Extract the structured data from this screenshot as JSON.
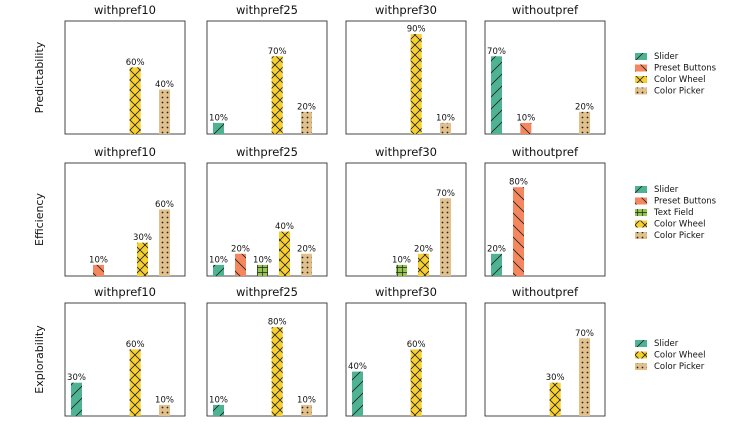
{
  "colors": {
    "Slider": "#4db393",
    "Preset Buttons": "#f58760",
    "Text Field": "#94c553",
    "Color Wheel": "#f7cf2e",
    "Color Picker": "#e1c08c"
  },
  "patterns": {
    "Slider": "diag-forward",
    "Preset Buttons": "diag-back",
    "Text Field": "plus-grid",
    "Color Wheel": "cross-hatch",
    "Color Picker": "dots"
  },
  "chart_data": [
    {
      "type": "bar",
      "row": "Predictability",
      "categories": [
        "Slider",
        "Preset Buttons",
        "Color Wheel",
        "Color Picker"
      ],
      "legend": [
        "Slider",
        "Preset Buttons",
        "Color Wheel",
        "Color Picker"
      ],
      "ylim": [
        0,
        100
      ],
      "panels": [
        {
          "title": "withpref10",
          "values": [
            null,
            null,
            60,
            40
          ],
          "labels": [
            "",
            "",
            "60%",
            "40%"
          ]
        },
        {
          "title": "withpref25",
          "values": [
            10,
            null,
            70,
            20
          ],
          "labels": [
            "10%",
            "",
            "70%",
            "20%"
          ]
        },
        {
          "title": "withpref30",
          "values": [
            null,
            null,
            90,
            10
          ],
          "labels": [
            "",
            "",
            "90%",
            "10%"
          ]
        },
        {
          "title": "withoutpref",
          "values": [
            70,
            10,
            null,
            20
          ],
          "labels": [
            "70%",
            "10%",
            "",
            "20%"
          ]
        }
      ]
    },
    {
      "type": "bar",
      "row": "Efficiency",
      "categories": [
        "Slider",
        "Preset Buttons",
        "Text Field",
        "Color Wheel",
        "Color Picker"
      ],
      "legend": [
        "Slider",
        "Preset Buttons",
        "Text Field",
        "Color Wheel",
        "Color Picker"
      ],
      "ylim": [
        0,
        100
      ],
      "panels": [
        {
          "title": "withpref10",
          "values": [
            null,
            10,
            null,
            30,
            60
          ],
          "labels": [
            "",
            "10%",
            "",
            "30%",
            "60%"
          ]
        },
        {
          "title": "withpref25",
          "values": [
            10,
            20,
            10,
            40,
            20
          ],
          "labels": [
            "10%",
            "20%",
            "10%",
            "40%",
            "20%"
          ]
        },
        {
          "title": "withpref30",
          "values": [
            null,
            null,
            10,
            20,
            70
          ],
          "labels": [
            "",
            "",
            "10%",
            "20%",
            "70%"
          ]
        },
        {
          "title": "withoutpref",
          "values": [
            20,
            80,
            null,
            null,
            null
          ],
          "labels": [
            "20%",
            "80%",
            "",
            "",
            ""
          ]
        }
      ]
    },
    {
      "type": "bar",
      "row": "Explorability",
      "categories": [
        "Slider",
        "Preset Buttons",
        "Color Wheel",
        "Color Picker"
      ],
      "legend": [
        "Slider",
        "Color Wheel",
        "Color Picker"
      ],
      "ylim": [
        0,
        100
      ],
      "panels": [
        {
          "title": "withpref10",
          "values": [
            30,
            null,
            60,
            10
          ],
          "labels": [
            "30%",
            "",
            "60%",
            "10%"
          ]
        },
        {
          "title": "withpref25",
          "values": [
            10,
            null,
            80,
            10
          ],
          "labels": [
            "10%",
            "",
            "80%",
            "10%"
          ]
        },
        {
          "title": "withpref30",
          "values": [
            40,
            null,
            60,
            null
          ],
          "labels": [
            "40%",
            "",
            "60%",
            ""
          ]
        },
        {
          "title": "withoutpref",
          "values": [
            null,
            null,
            30,
            70
          ],
          "labels": [
            "",
            "",
            "30%",
            "70%"
          ]
        }
      ]
    }
  ]
}
